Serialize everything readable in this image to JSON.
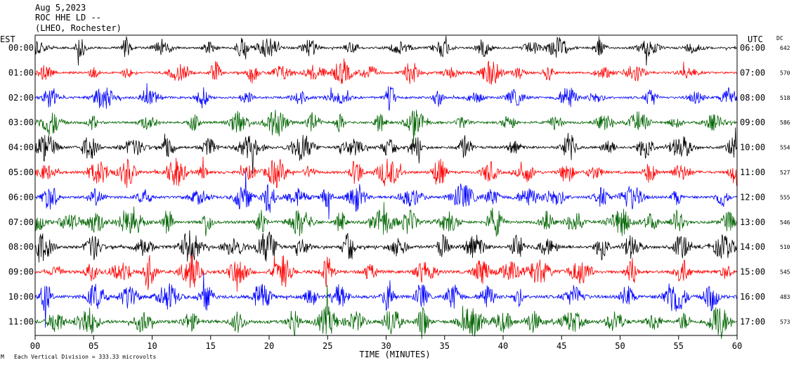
{
  "header": {
    "date": "Aug 5,2023",
    "station": "ROC HHE LD --",
    "location": "(LHEO, Rochester)"
  },
  "left_axis_label": "EST",
  "right_axis_label": "UTC",
  "dc_label": "DC",
  "footer": {
    "scale_note": "Each Vertical Division = 333.33 microvolts",
    "corner_mark": "M"
  },
  "chart_data": {
    "type": "line",
    "title": "",
    "xlabel": "TIME (MINUTES)",
    "ylabel": "",
    "xlim": [
      0,
      60
    ],
    "x_ticks": [
      "00",
      "05",
      "10",
      "15",
      "20",
      "25",
      "30",
      "35",
      "40",
      "45",
      "50",
      "55",
      "60"
    ],
    "trace_colors": [
      "#000000",
      "#ff0000",
      "#0000ff",
      "#006400"
    ],
    "series": [
      {
        "est": "00:00",
        "utc": "06:00",
        "dc": "642",
        "color": "#000000"
      },
      {
        "est": "01:00",
        "utc": "07:00",
        "dc": "570",
        "color": "#ff0000"
      },
      {
        "est": "02:00",
        "utc": "08:00",
        "dc": "518",
        "color": "#0000ff"
      },
      {
        "est": "03:00",
        "utc": "09:00",
        "dc": "586",
        "color": "#006400"
      },
      {
        "est": "04:00",
        "utc": "10:00",
        "dc": "554",
        "color": "#000000"
      },
      {
        "est": "05:00",
        "utc": "11:00",
        "dc": "527",
        "color": "#ff0000"
      },
      {
        "est": "06:00",
        "utc": "12:00",
        "dc": "555",
        "color": "#0000ff"
      },
      {
        "est": "07:00",
        "utc": "13:00",
        "dc": "546",
        "color": "#006400"
      },
      {
        "est": "08:00",
        "utc": "14:00",
        "dc": "510",
        "color": "#000000"
      },
      {
        "est": "09:00",
        "utc": "15:00",
        "dc": "545",
        "color": "#ff0000"
      },
      {
        "est": "10:00",
        "utc": "16:00",
        "dc": "483",
        "color": "#0000ff"
      },
      {
        "est": "11:00",
        "utc": "17:00",
        "dc": "573",
        "color": "#006400"
      }
    ]
  }
}
